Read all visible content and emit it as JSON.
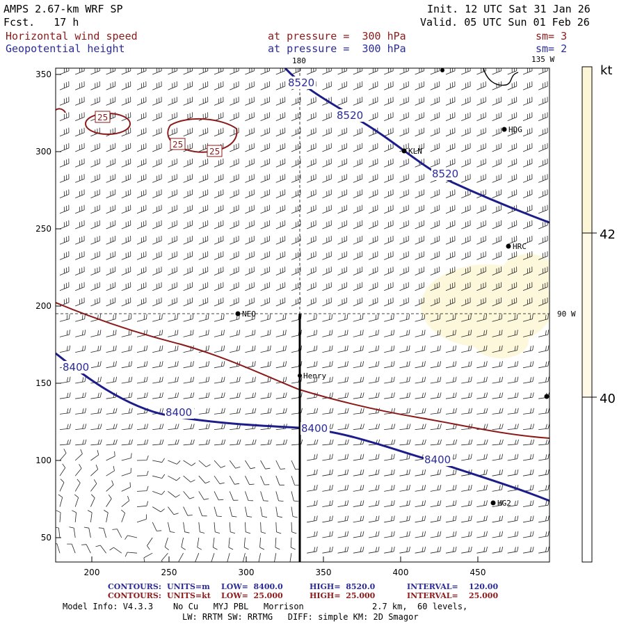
{
  "header": {
    "model": "AMPS 2.67-km WRF SP",
    "fcst": "Fcst.   17 h",
    "init": "Init. 12 UTC Sat 31 Jan 26",
    "valid": "Valid. 05 UTC Sun 01 Feb 26",
    "field1": {
      "name": "Horizontal wind speed",
      "level": "at pressure =  300 hPa",
      "sm": "sm= 3"
    },
    "field2": {
      "name": "Geopotential height",
      "level": "at pressure =  300 hPa",
      "sm": "sm= 2"
    }
  },
  "map": {
    "lon_labels": {
      "top": "180",
      "top_right": "135 W",
      "right": "90 W"
    },
    "x_ticks": [
      "200",
      "250",
      "300",
      "350",
      "400",
      "450"
    ],
    "y_ticks": [
      "350",
      "300",
      "250",
      "200",
      "150",
      "100",
      "50"
    ],
    "height_contours": [
      "8520",
      "8520",
      "8520",
      "8400",
      "8400",
      "8400",
      "8400"
    ],
    "wind_contours": [
      "25",
      "25",
      "25"
    ],
    "stations": [
      "HDG",
      "KLN",
      "HRC",
      "NEO",
      "Henry",
      "HG2"
    ]
  },
  "colorbar": {
    "unit": "kt",
    "labels": [
      "42",
      "40"
    ]
  },
  "footer": {
    "contours_height": {
      "label": "CONTOURS:",
      "units": "UNITS=m",
      "low": "LOW=  8400.0",
      "high": "HIGH=  8520.0",
      "interval": "INTERVAL=    120.00"
    },
    "contours_wind": {
      "label": "CONTOURS:",
      "units": "UNITS=kt",
      "low": "LOW=  25.000",
      "high": "HIGH=  25.000",
      "interval": "INTERVAL=    25.000"
    },
    "model_info": "Model Info: V4.3.3    No Cu   MYJ PBL   Morrison",
    "grid": "2.7 km,  60 levels,",
    "physics": "LW: RRTM SW: RRTMG   DIFF: simple KM: 2D Smagor"
  },
  "colors": {
    "height": "#1c1c8a",
    "wind": "#8b1a1a",
    "shade": "#fdf8dc"
  }
}
